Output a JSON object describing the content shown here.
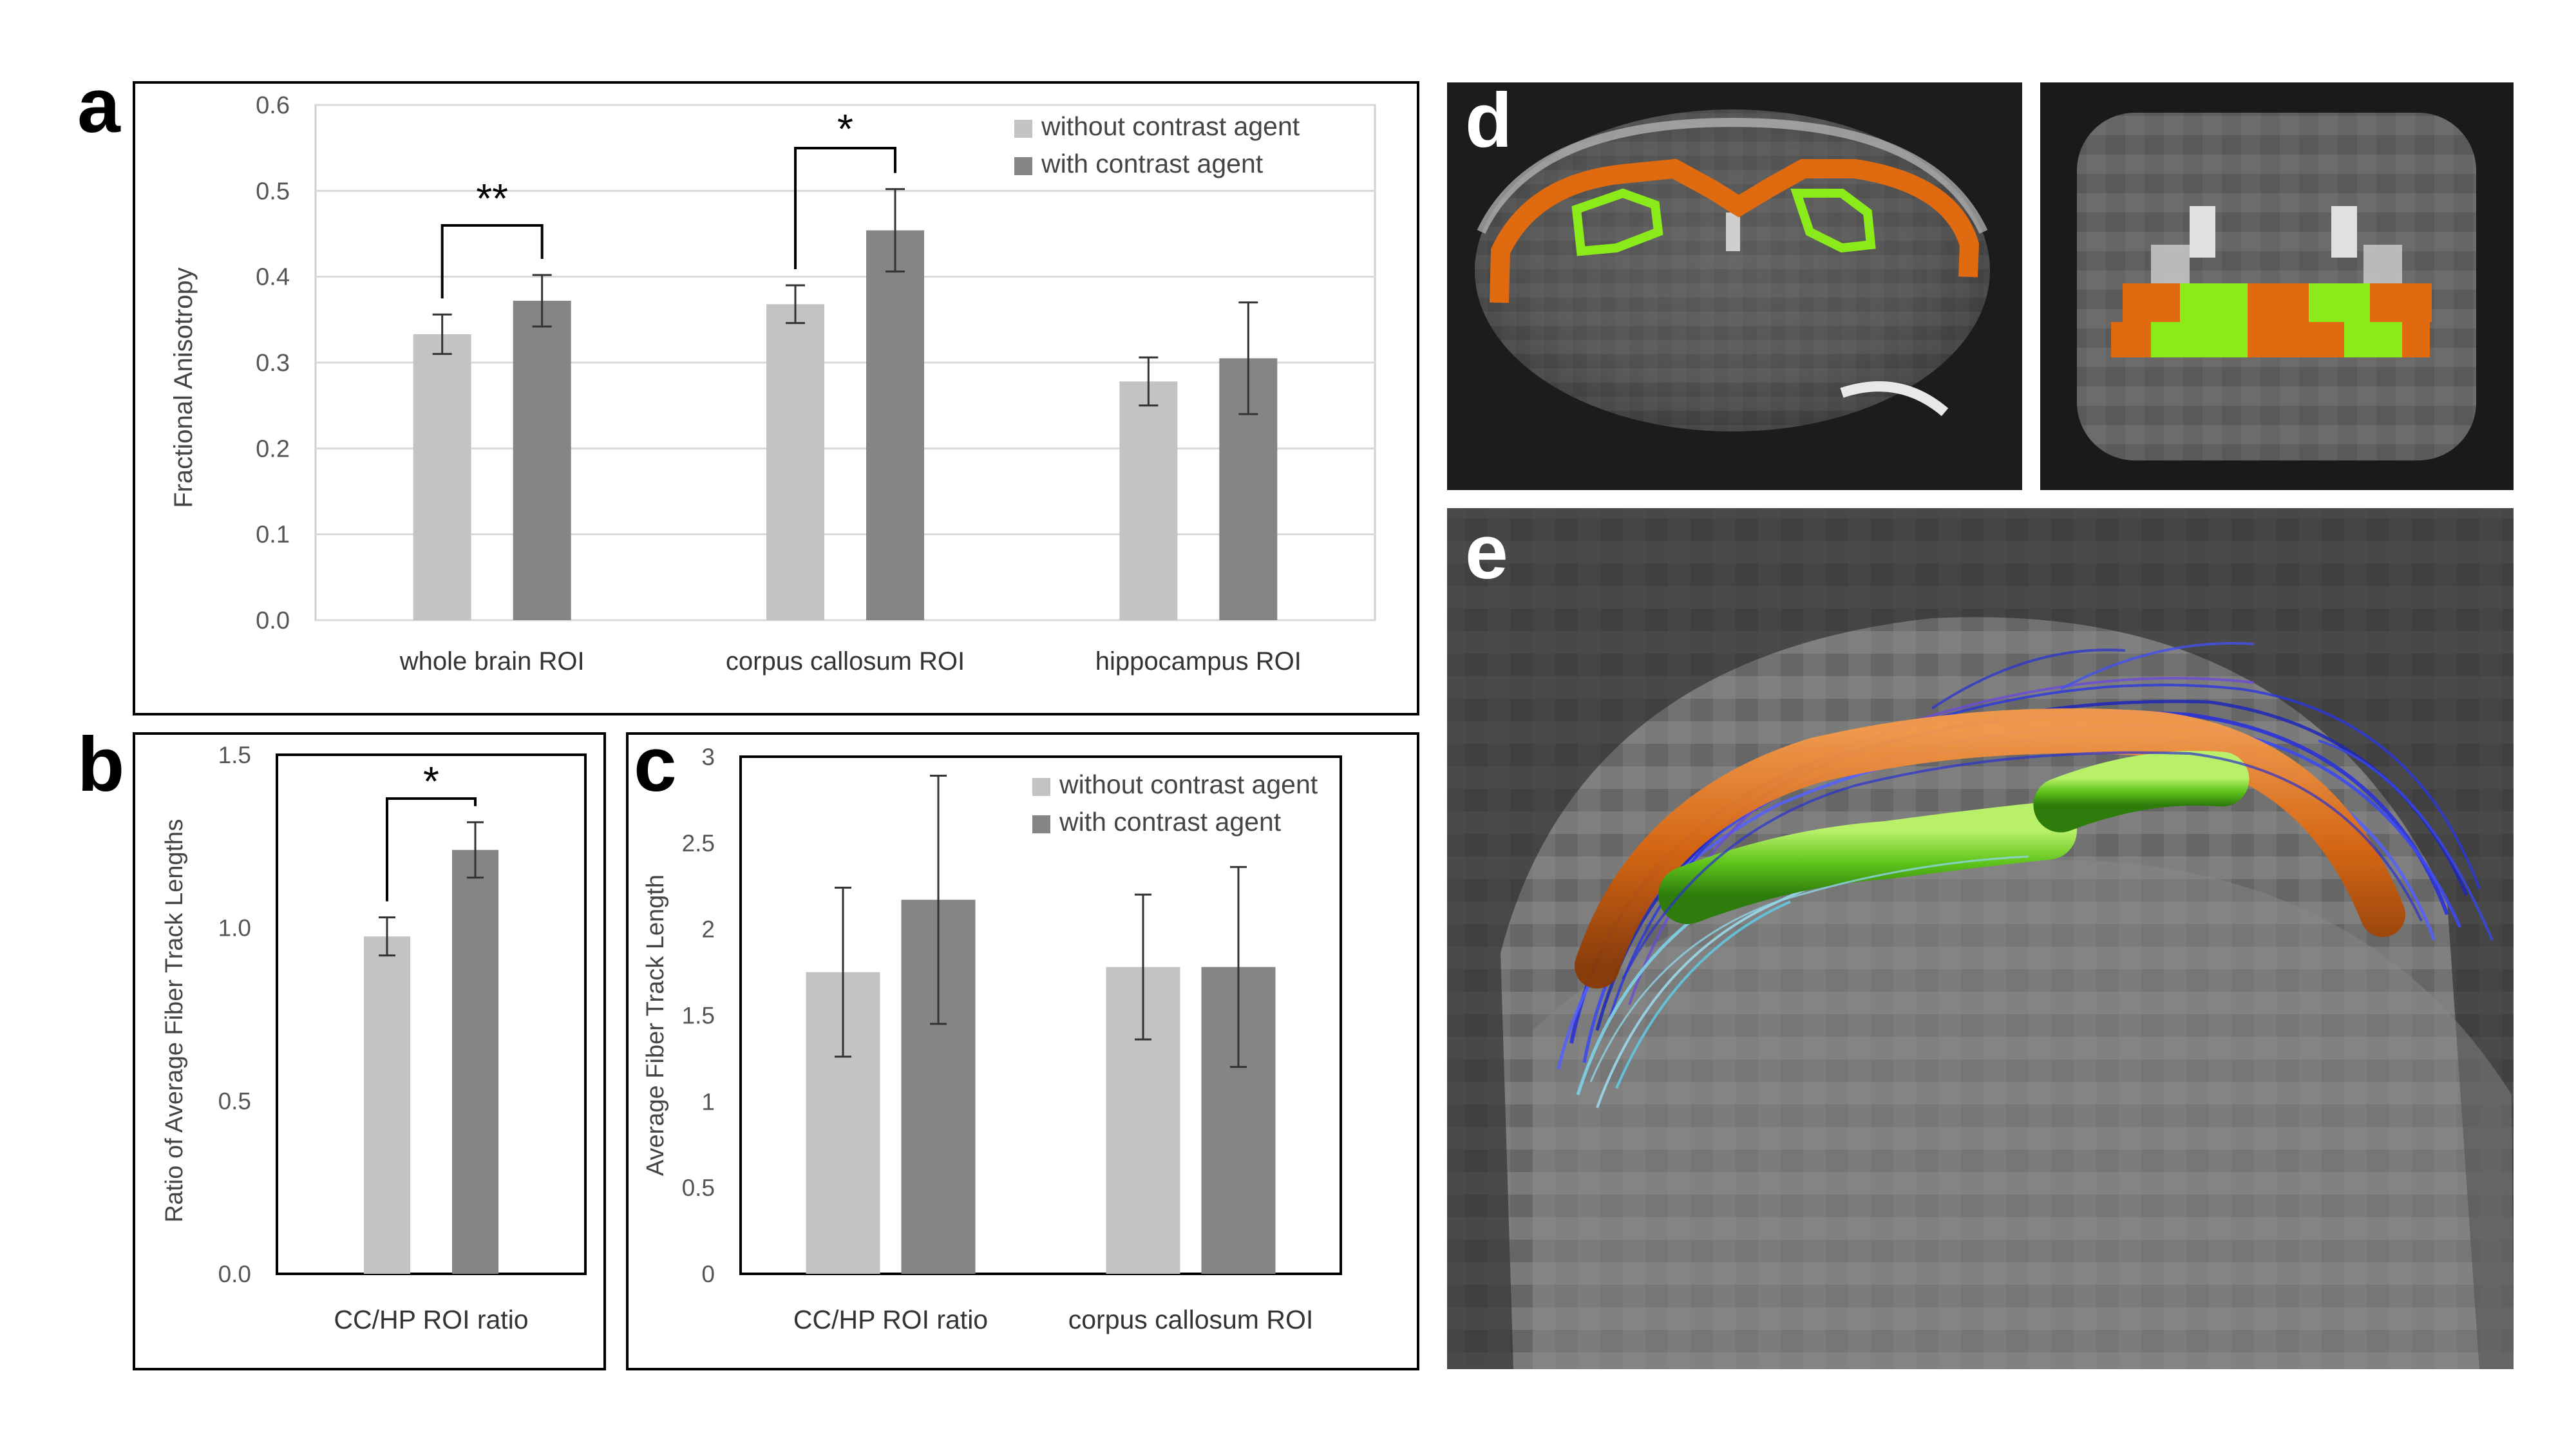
{
  "colors": {
    "without": "#c3c3c3",
    "with": "#858585",
    "gridline": "#d9d9d9",
    "orange_roi": "#e06a10",
    "green_roi": "#8aea1a"
  },
  "panels": {
    "a": {
      "letter": "a"
    },
    "b": {
      "letter": "b"
    },
    "c": {
      "letter": "c"
    },
    "d": {
      "letter": "d"
    },
    "e": {
      "letter": "e"
    }
  },
  "chart_data": [
    {
      "panel": "a",
      "type": "bar",
      "title": "",
      "xlabel": "",
      "ylabel": "Fractional Anisotropy",
      "ylim": [
        0,
        0.6
      ],
      "yticks": [
        "0.0",
        "0.1",
        "0.2",
        "0.3",
        "0.4",
        "0.5",
        "0.6"
      ],
      "grid": true,
      "legend_position": "top-right",
      "categories": [
        "whole brain ROI",
        "corpus callosum ROI",
        "hippocampus ROI"
      ],
      "series": [
        {
          "name": "without contrast agent",
          "values": [
            0.333,
            0.368,
            0.278
          ],
          "errors": [
            0.023,
            0.022,
            0.028
          ]
        },
        {
          "name": "with contrast agent",
          "values": [
            0.372,
            0.454,
            0.305
          ],
          "errors": [
            0.03,
            0.048,
            0.065
          ]
        }
      ],
      "significance": [
        {
          "category_index": 0,
          "label": "**"
        },
        {
          "category_index": 1,
          "label": "*"
        }
      ]
    },
    {
      "panel": "b",
      "type": "bar",
      "title": "",
      "xlabel": "",
      "ylabel": "Ratio of Average Fiber Track Lengths",
      "ylim": [
        0,
        1.5
      ],
      "yticks": [
        "0.0",
        "0.5",
        "1.0",
        "1.5"
      ],
      "grid": false,
      "categories": [
        "CC/HP ROI ratio"
      ],
      "series": [
        {
          "name": "without contrast agent",
          "values": [
            0.975
          ],
          "errors": [
            0.055
          ]
        },
        {
          "name": "with contrast agent",
          "values": [
            1.225
          ],
          "errors": [
            0.08
          ]
        }
      ],
      "significance": [
        {
          "category_index": 0,
          "label": "*"
        }
      ]
    },
    {
      "panel": "c",
      "type": "bar",
      "title": "",
      "xlabel": "",
      "ylabel": "Average Fiber Track Length",
      "ylim": [
        0,
        3
      ],
      "yticks": [
        "0",
        "0.5",
        "1",
        "1.5",
        "2",
        "2.5",
        "3"
      ],
      "grid": false,
      "legend_position": "top-right",
      "categories": [
        "CC/HP ROI ratio",
        "corpus callosum ROI"
      ],
      "series": [
        {
          "name": "without contrast agent",
          "values": [
            1.75,
            1.78
          ],
          "errors": [
            0.49,
            0.42
          ]
        },
        {
          "name": "with contrast agent",
          "values": [
            2.17,
            1.78
          ],
          "errors": [
            0.72,
            0.58
          ]
        }
      ],
      "significance": []
    }
  ]
}
